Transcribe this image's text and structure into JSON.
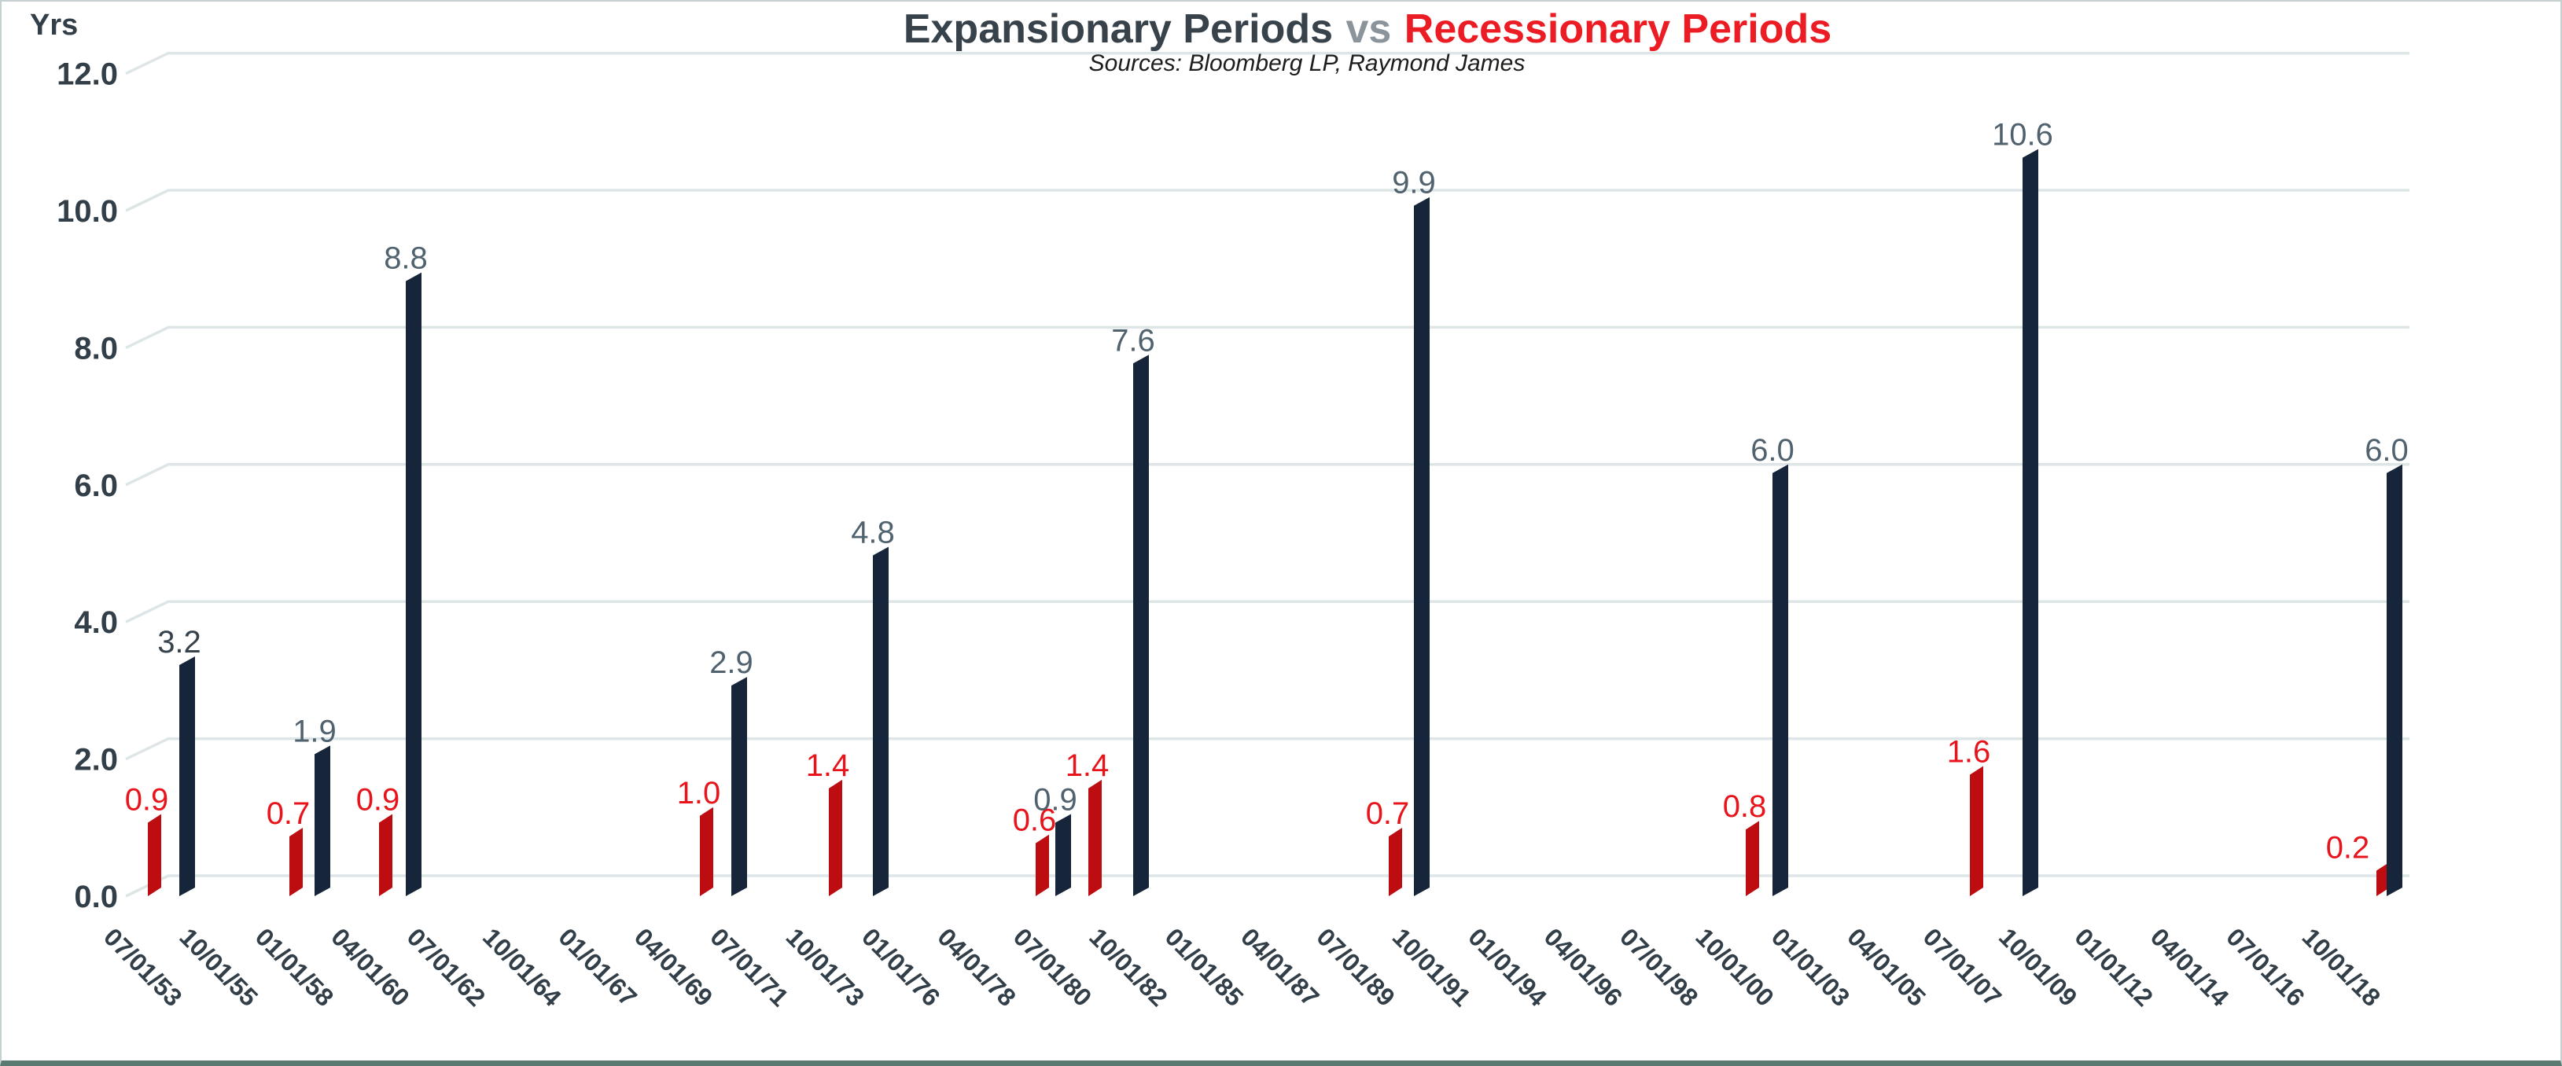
{
  "title": {
    "expansionary": "Expansionary Periods",
    "vs": "vs",
    "recessionary": "Recessionary Periods",
    "expansionary_color": "#37424b",
    "vs_color": "#8b949b",
    "recessionary_color": "#ec1c24"
  },
  "subtitle": {
    "text": "Sources: Bloomberg LP, Raymond James"
  },
  "colors": {
    "background": "#ffffff",
    "gridline": "#dde5e7",
    "recession_bar": "#be0d11",
    "expansion_bar": "#162539",
    "recession_label": "#e8141c",
    "expansion_label": "#51626f",
    "axis_text": "#333f48",
    "frame_border": "#c6d0d1",
    "frame_bottom": "#5b7a72"
  },
  "chart_data": {
    "type": "bar",
    "style": "3d-columns",
    "title": "Expansionary Periods vs Recessionary Periods",
    "subtitle": "Sources: Bloomberg LP, Raymond James",
    "ylabel": "Yrs",
    "ylim": [
      0,
      12
    ],
    "grid": true,
    "legend": false,
    "y_ticks": [
      0,
      2,
      4,
      6,
      8,
      10,
      12
    ],
    "y_tick_labels": [
      "0.0",
      "2.0",
      "4.0",
      "6.0",
      "8.0",
      "10.0",
      "12.0"
    ],
    "x_tick_labels": [
      "07/01/53",
      "10/01/55",
      "01/01/58",
      "04/01/60",
      "07/01/62",
      "10/01/64",
      "01/01/67",
      "04/01/69",
      "07/01/71",
      "10/01/73",
      "01/01/76",
      "04/01/78",
      "07/01/80",
      "10/01/82",
      "01/01/85",
      "04/01/87",
      "07/01/89",
      "10/01/91",
      "01/01/94",
      "04/01/96",
      "07/01/98",
      "10/01/00",
      "01/01/03",
      "04/01/05",
      "07/01/07",
      "10/01/09",
      "01/01/12",
      "04/01/14",
      "07/01/16",
      "10/01/18"
    ],
    "series": [
      {
        "id": "recession",
        "name": "Recessionary Periods",
        "bar_color": "#be0d11",
        "label_color": "#e8141c",
        "values": [
          0.9,
          0.7,
          0.9,
          1.0,
          1.4,
          0.6,
          1.4,
          0.7,
          0.8,
          1.6,
          0.2
        ]
      },
      {
        "id": "expansion",
        "name": "Expansionary Periods",
        "bar_color": "#162539",
        "label_color": "#51626f",
        "values": [
          3.2,
          1.9,
          8.8,
          2.9,
          4.8,
          0.9,
          7.6,
          9.9,
          6.0,
          10.6,
          6.0
        ]
      }
    ],
    "bars": [
      {
        "series": "recession",
        "value": 0.9,
        "x": 186
      },
      {
        "series": "expansion",
        "value": 3.2,
        "x": 226,
        "label_color": "#37424b"
      },
      {
        "series": "recession",
        "value": 0.7,
        "x": 366
      },
      {
        "series": "expansion",
        "value": 1.9,
        "x": 398
      },
      {
        "series": "recession",
        "value": 0.9,
        "x": 480
      },
      {
        "series": "expansion",
        "value": 8.8,
        "x": 514
      },
      {
        "series": "recession",
        "value": 1.0,
        "x": 888
      },
      {
        "series": "expansion",
        "value": 2.9,
        "x": 928
      },
      {
        "series": "recession",
        "value": 1.4,
        "x": 1052
      },
      {
        "series": "expansion",
        "value": 4.8,
        "x": 1108
      },
      {
        "series": "recession",
        "value": 0.6,
        "x": 1315
      },
      {
        "series": "expansion",
        "value": 0.9,
        "x": 1340
      },
      {
        "series": "recession",
        "value": 1.4,
        "x": 1382
      },
      {
        "series": "expansion",
        "value": 7.6,
        "x": 1439
      },
      {
        "series": "recession",
        "value": 0.7,
        "x": 1764
      },
      {
        "series": "expansion",
        "value": 9.9,
        "x": 1796
      },
      {
        "series": "recession",
        "value": 0.8,
        "x": 2218
      },
      {
        "series": "expansion",
        "value": 6.0,
        "x": 2252
      },
      {
        "series": "recession",
        "value": 1.6,
        "x": 2503
      },
      {
        "series": "expansion",
        "value": 10.6,
        "x": 2570
      },
      {
        "series": "recession",
        "value": 0.2,
        "x": 3020,
        "label_dx": -35
      },
      {
        "series": "expansion",
        "value": 6.0,
        "x": 3033
      }
    ]
  }
}
